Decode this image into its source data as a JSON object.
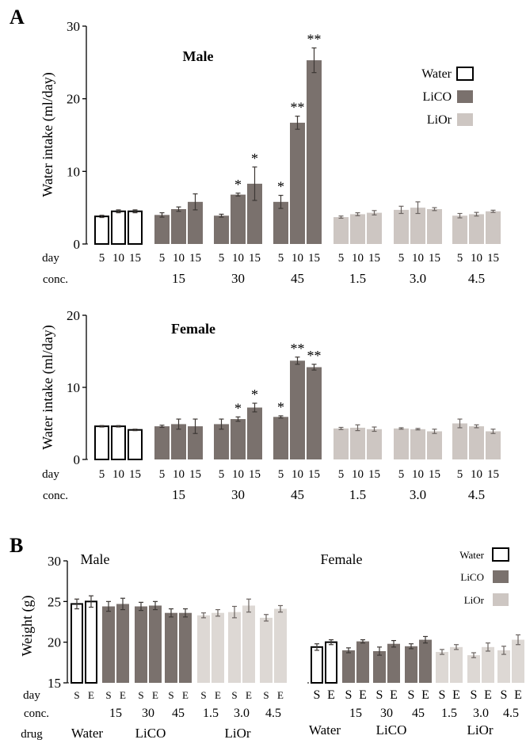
{
  "figure": {
    "panel_a_label": "A",
    "panel_b_label": "B"
  },
  "colors": {
    "water_fill": "#ffffff",
    "water_stroke": "#000000",
    "lico": "#7a716d",
    "lior": "#cdc6c2",
    "lior_light": "#ddd8d4",
    "title_gray": "#6f6a67"
  },
  "chart_data": [
    {
      "type": "bar",
      "panel": "A",
      "title": "Male",
      "ylabel": "Water intake (ml/day)",
      "ylim": [
        0,
        30
      ],
      "yticks": [
        0,
        10,
        20,
        30
      ],
      "row_labels": {
        "day": "day",
        "conc": "conc."
      },
      "groups": [
        {
          "drug": "Water",
          "conc": "",
          "days": [
            "5",
            "10",
            "15"
          ],
          "values": [
            3.8,
            4.5,
            4.5
          ],
          "errors": [
            0.15,
            0.2,
            0.2
          ],
          "sig": [
            "",
            "",
            ""
          ]
        },
        {
          "drug": "LiCO",
          "conc": "15",
          "days": [
            "5",
            "10",
            "15"
          ],
          "values": [
            4.0,
            4.8,
            5.8
          ],
          "errors": [
            0.3,
            0.3,
            1.1
          ],
          "sig": [
            "",
            "",
            ""
          ]
        },
        {
          "drug": "LiCO",
          "conc": "30",
          "days": [
            "5",
            "10",
            "15"
          ],
          "values": [
            3.9,
            6.8,
            8.3
          ],
          "errors": [
            0.2,
            0.2,
            2.3
          ],
          "sig": [
            "",
            "*",
            "*"
          ]
        },
        {
          "drug": "LiCO",
          "conc": "45",
          "days": [
            "5",
            "10",
            "15"
          ],
          "values": [
            5.8,
            16.7,
            25.3
          ],
          "errors": [
            0.9,
            0.9,
            1.7
          ],
          "sig": [
            "*",
            "**",
            "**"
          ]
        },
        {
          "drug": "LiOr",
          "conc": "1.5",
          "days": [
            "5",
            "10",
            "15"
          ],
          "values": [
            3.7,
            4.1,
            4.3
          ],
          "errors": [
            0.15,
            0.2,
            0.3
          ],
          "sig": [
            "",
            "",
            ""
          ]
        },
        {
          "drug": "LiOr",
          "conc": "3.0",
          "days": [
            "5",
            "10",
            "15"
          ],
          "values": [
            4.7,
            5.0,
            4.8
          ],
          "errors": [
            0.5,
            0.8,
            0.2
          ],
          "sig": [
            "",
            "",
            ""
          ]
        },
        {
          "drug": "LiOr",
          "conc": "4.5",
          "days": [
            "5",
            "10",
            "15"
          ],
          "values": [
            3.9,
            4.1,
            4.5
          ],
          "errors": [
            0.3,
            0.25,
            0.15
          ],
          "sig": [
            "",
            "",
            ""
          ]
        }
      ],
      "legend": [
        {
          "name": "Water",
          "key": "water"
        },
        {
          "name": "LiCO",
          "key": "lico"
        },
        {
          "name": "LiOr",
          "key": "lior"
        }
      ]
    },
    {
      "type": "bar",
      "panel": "A",
      "title": "Female",
      "ylabel": "Water intake (ml/day)",
      "ylim": [
        0,
        20
      ],
      "yticks": [
        0,
        10,
        20
      ],
      "row_labels": {
        "day": "day",
        "conc": "conc."
      },
      "groups": [
        {
          "drug": "Water",
          "conc": "",
          "days": [
            "5",
            "10",
            "15"
          ],
          "values": [
            4.6,
            4.6,
            4.1
          ],
          "errors": [
            0.1,
            0.1,
            0.1
          ],
          "sig": [
            "",
            "",
            ""
          ]
        },
        {
          "drug": "LiCO",
          "conc": "15",
          "days": [
            "5",
            "10",
            "15"
          ],
          "values": [
            4.6,
            4.9,
            4.6
          ],
          "errors": [
            0.15,
            0.7,
            1.0
          ],
          "sig": [
            "",
            "",
            ""
          ]
        },
        {
          "drug": "LiCO",
          "conc": "30",
          "days": [
            "5",
            "10",
            "15"
          ],
          "values": [
            4.9,
            5.6,
            7.2
          ],
          "errors": [
            0.7,
            0.3,
            0.6
          ],
          "sig": [
            "",
            "*",
            "*"
          ]
        },
        {
          "drug": "LiCO",
          "conc": "45",
          "days": [
            "5",
            "10",
            "15"
          ],
          "values": [
            5.9,
            13.7,
            12.8
          ],
          "errors": [
            0.15,
            0.5,
            0.4
          ],
          "sig": [
            "*",
            "**",
            "**"
          ]
        },
        {
          "drug": "LiOr",
          "conc": "1.5",
          "days": [
            "5",
            "10",
            "15"
          ],
          "values": [
            4.3,
            4.4,
            4.2
          ],
          "errors": [
            0.15,
            0.4,
            0.3
          ],
          "sig": [
            "",
            "",
            ""
          ]
        },
        {
          "drug": "LiOr",
          "conc": "3.0",
          "days": [
            "5",
            "10",
            "15"
          ],
          "values": [
            4.3,
            4.2,
            3.9
          ],
          "errors": [
            0.1,
            0.1,
            0.3
          ],
          "sig": [
            "",
            "",
            ""
          ]
        },
        {
          "drug": "LiOr",
          "conc": "4.5",
          "days": [
            "5",
            "10",
            "15"
          ],
          "values": [
            5.0,
            4.6,
            3.9
          ],
          "errors": [
            0.6,
            0.2,
            0.3
          ],
          "sig": [
            "",
            "",
            ""
          ]
        }
      ]
    },
    {
      "type": "bar",
      "panel": "B",
      "title": "Male",
      "ylabel": "Weight (g)",
      "ylim": [
        15,
        30
      ],
      "yticks": [
        15,
        20,
        25,
        30
      ],
      "row_labels": {
        "day": "day",
        "conc": "conc.",
        "drug": "drug"
      },
      "drug_labels": [
        "Water",
        "LiCO",
        "LiOr"
      ],
      "groups": [
        {
          "drug": "Water",
          "conc": "",
          "days": [
            "S",
            "E"
          ],
          "values": [
            24.7,
            25.0
          ],
          "errors": [
            0.6,
            0.7
          ]
        },
        {
          "drug": "LiCO",
          "conc": "15",
          "days": [
            "S",
            "E"
          ],
          "values": [
            24.4,
            24.7
          ],
          "errors": [
            0.6,
            0.7
          ]
        },
        {
          "drug": "LiCO",
          "conc": "30",
          "days": [
            "S",
            "E"
          ],
          "values": [
            24.4,
            24.5
          ],
          "errors": [
            0.5,
            0.5
          ]
        },
        {
          "drug": "LiCO",
          "conc": "45",
          "days": [
            "S",
            "E"
          ],
          "values": [
            23.6,
            23.6
          ],
          "errors": [
            0.5,
            0.5
          ]
        },
        {
          "drug": "LiOr",
          "conc": "1.5",
          "days": [
            "S",
            "E"
          ],
          "values": [
            23.3,
            23.6
          ],
          "errors": [
            0.3,
            0.4
          ]
        },
        {
          "drug": "LiOr",
          "conc": "3.0",
          "days": [
            "S",
            "E"
          ],
          "values": [
            23.7,
            24.5
          ],
          "errors": [
            0.7,
            0.8
          ]
        },
        {
          "drug": "LiOr",
          "conc": "4.5",
          "days": [
            "S",
            "E"
          ],
          "values": [
            23.0,
            24.1
          ],
          "errors": [
            0.4,
            0.4
          ]
        }
      ]
    },
    {
      "type": "bar",
      "panel": "B",
      "title": "Female",
      "ylabel": "",
      "ylim": [
        15,
        30
      ],
      "drug_labels": [
        "Water",
        "LiCO",
        "LiOr"
      ],
      "groups": [
        {
          "drug": "Water",
          "conc": "",
          "days": [
            "S",
            "E"
          ],
          "values": [
            19.4,
            20.0
          ],
          "errors": [
            0.4,
            0.3
          ]
        },
        {
          "drug": "LiCO",
          "conc": "15",
          "days": [
            "S",
            "E"
          ],
          "values": [
            19.0,
            20.1
          ],
          "errors": [
            0.3,
            0.2
          ]
        },
        {
          "drug": "LiCO",
          "conc": "30",
          "days": [
            "S",
            "E"
          ],
          "values": [
            18.9,
            19.8
          ],
          "errors": [
            0.5,
            0.4
          ]
        },
        {
          "drug": "LiCO",
          "conc": "45",
          "days": [
            "S",
            "E"
          ],
          "values": [
            19.5,
            20.3
          ],
          "errors": [
            0.3,
            0.4
          ]
        },
        {
          "drug": "LiOr",
          "conc": "1.5",
          "days": [
            "S",
            "E"
          ],
          "values": [
            18.8,
            19.4
          ],
          "errors": [
            0.3,
            0.3
          ]
        },
        {
          "drug": "LiOr",
          "conc": "3.0",
          "days": [
            "S",
            "E"
          ],
          "values": [
            18.4,
            19.4
          ],
          "errors": [
            0.3,
            0.5
          ]
        },
        {
          "drug": "LiOr",
          "conc": "4.5",
          "days": [
            "S",
            "E"
          ],
          "values": [
            19.0,
            20.3
          ],
          "errors": [
            0.5,
            0.6
          ]
        }
      ],
      "legend": [
        {
          "name": "Water",
          "key": "water"
        },
        {
          "name": "LiCO",
          "key": "lico"
        },
        {
          "name": "LiOr",
          "key": "lior"
        }
      ]
    }
  ]
}
